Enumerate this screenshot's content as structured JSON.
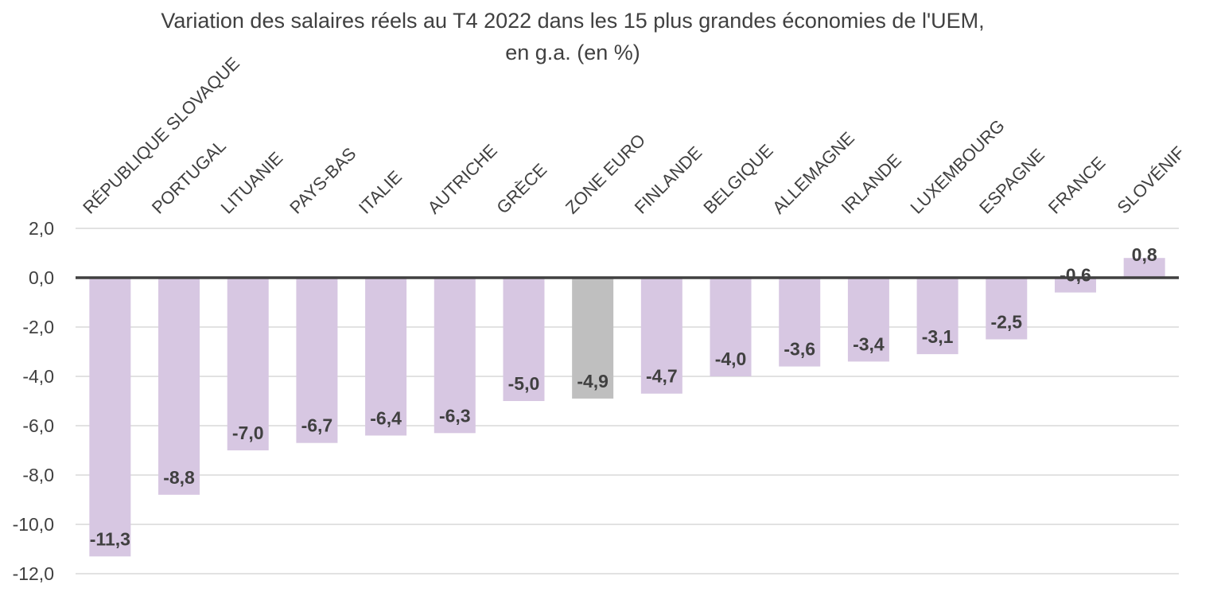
{
  "chart_data": {
    "type": "bar",
    "title": "Variation des salaires réels au T4 2022 dans les 15 plus grandes économies de l'UEM,",
    "subtitle": "en g.a. (en %)",
    "xlabel": "",
    "ylabel": "",
    "categories": [
      "RÉPUBLIQUE SLOVAQUE",
      "PORTUGAL",
      "LITUANIE",
      "PAYS-BAS",
      "ITALIE",
      "AUTRICHE",
      "GRÈCE",
      "ZONE EURO",
      "FINLANDE",
      "BELGIQUE",
      "ALLEMAGNE",
      "IRLANDE",
      "LUXEMBOURG",
      "ESPAGNE",
      "FRANCE",
      "SLOVÉNIF"
    ],
    "values": [
      -11.3,
      -8.8,
      -7.0,
      -6.7,
      -6.4,
      -6.3,
      -5.0,
      -4.9,
      -4.7,
      -4.0,
      -3.6,
      -3.4,
      -3.1,
      -2.5,
      -0.6,
      0.8
    ],
    "value_labels": [
      "-11,3",
      "-8,8",
      "-7,0",
      "-6,7",
      "-6,4",
      "-6,3",
      "-5,0",
      "-4,9",
      "-4,7",
      "-4,0",
      "-3,6",
      "-3,4",
      "-3,1",
      "-2,5",
      "-0,6",
      "0,8"
    ],
    "highlight_category": "ZONE EURO",
    "ylim": [
      -12,
      2
    ],
    "yticks": [
      2,
      0,
      -2,
      -4,
      -6,
      -8,
      -10,
      -12
    ],
    "ytick_labels": [
      "2,0",
      "0,0",
      "-2,0",
      "-4,0",
      "-6,0",
      "-8,0",
      "-10,0",
      "-12,0"
    ],
    "grid": true,
    "legend": "none",
    "colors": {
      "bar": "#d7c7e2",
      "highlight_bar": "#bfbfbf",
      "zero_line": "#404040",
      "grid": "#d9d9d9",
      "text": "#404040"
    }
  }
}
